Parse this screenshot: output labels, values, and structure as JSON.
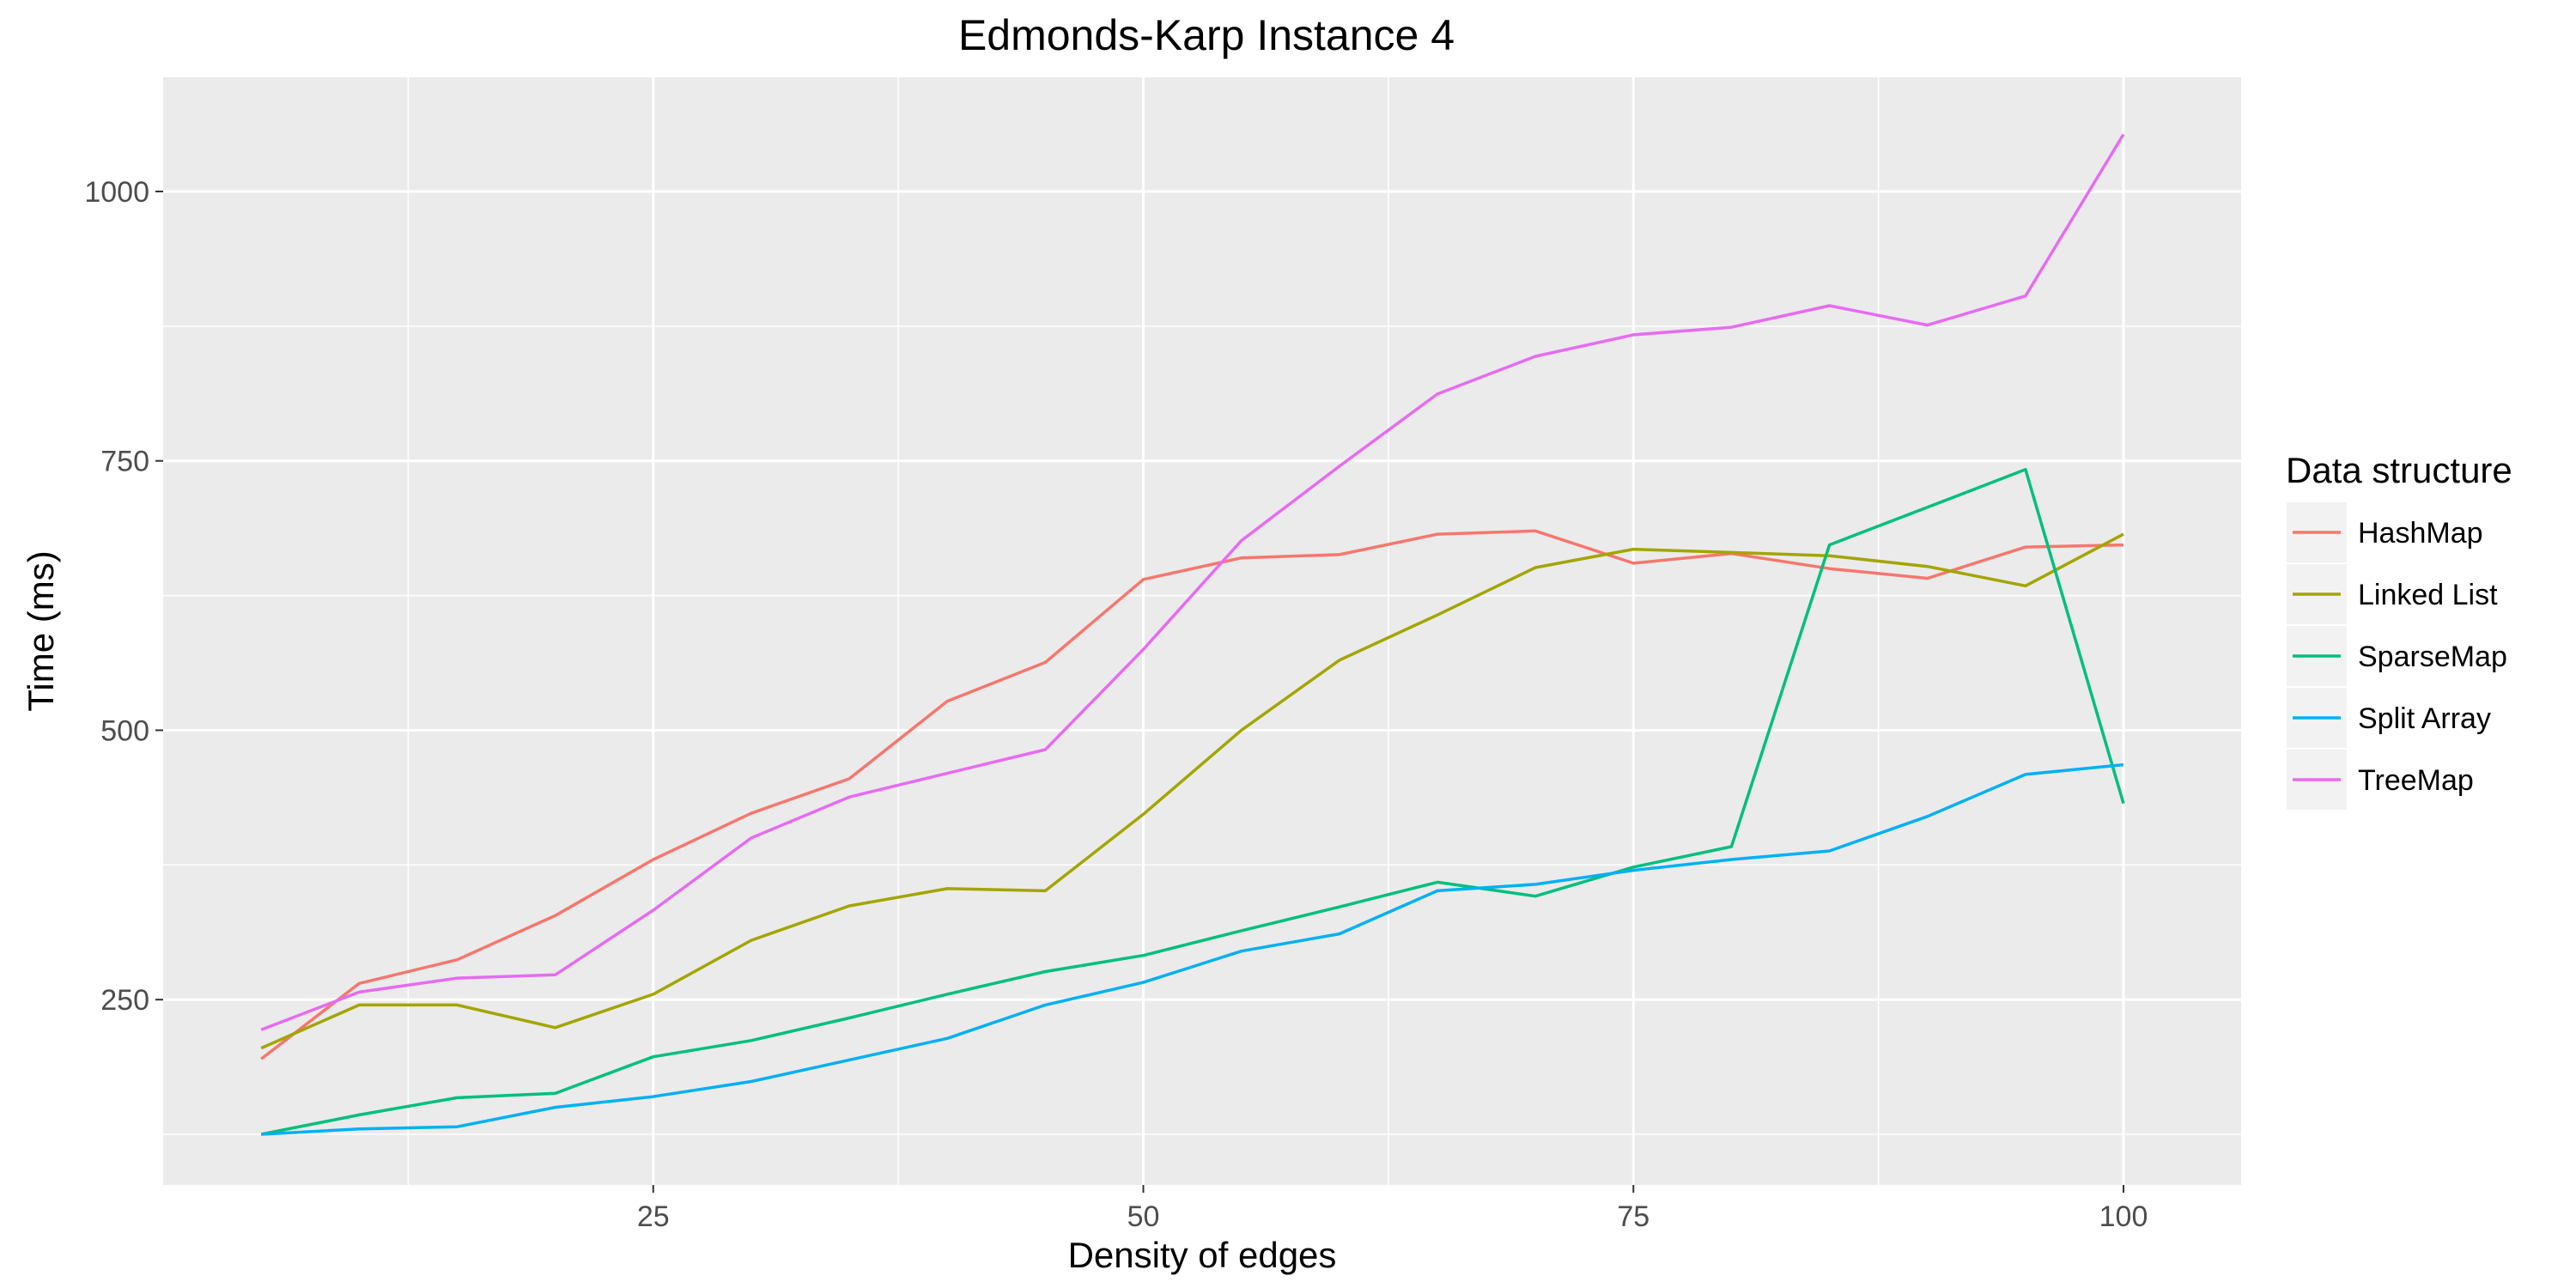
{
  "chart_data": {
    "type": "line",
    "title": "Edmonds-Karp Instance 4",
    "xlabel": "Density of edges",
    "ylabel": "Time (ms)",
    "xlim": [
      0,
      106
    ],
    "ylim": [
      78,
      1106
    ],
    "xticks": [
      25,
      50,
      75,
      100
    ],
    "yticks": [
      250,
      500,
      750,
      1000
    ],
    "grid": true,
    "legend": {
      "title": "Data structure",
      "position": "right"
    },
    "x": [
      5,
      10,
      15,
      20,
      25,
      30,
      35,
      40,
      45,
      50,
      55,
      60,
      65,
      70,
      75,
      80,
      85,
      90,
      95,
      100
    ],
    "series": [
      {
        "name": "HashMap",
        "color": "#F8766D",
        "values": [
          195,
          265,
          287,
          328,
          380,
          423,
          455,
          527,
          563,
          640,
          660,
          663,
          682,
          685,
          655,
          664,
          650,
          641,
          670,
          672
        ]
      },
      {
        "name": "Linked List",
        "color": "#A3A500",
        "values": [
          205,
          245,
          245,
          224,
          255,
          305,
          337,
          353,
          351,
          422,
          500,
          565,
          607,
          651,
          668,
          665,
          662,
          652,
          634,
          682
        ]
      },
      {
        "name": "SparseMap",
        "color": "#00BF7D",
        "values": [
          125,
          143,
          159,
          163,
          197,
          212,
          233,
          255,
          276,
          291,
          314,
          336,
          359,
          346,
          373,
          392,
          672,
          707,
          742,
          432
        ]
      },
      {
        "name": "Split Array",
        "color": "#00B0F6",
        "values": [
          125,
          130,
          132,
          150,
          160,
          174,
          194,
          214,
          245,
          266,
          295,
          311,
          351,
          357,
          370,
          380,
          388,
          420,
          459,
          468
        ]
      },
      {
        "name": "TreeMap",
        "color": "#E76BF3",
        "values": [
          222,
          257,
          270,
          273,
          333,
          400,
          438,
          460,
          482,
          575,
          676,
          745,
          812,
          847,
          867,
          874,
          894,
          876,
          903,
          1053
        ]
      }
    ]
  },
  "colors": {
    "panel_background": "#EBEBEB",
    "grid_major": "#FFFFFF",
    "legend_key_background": "#F2F2F2",
    "tick_label": "#4D4D4D"
  }
}
